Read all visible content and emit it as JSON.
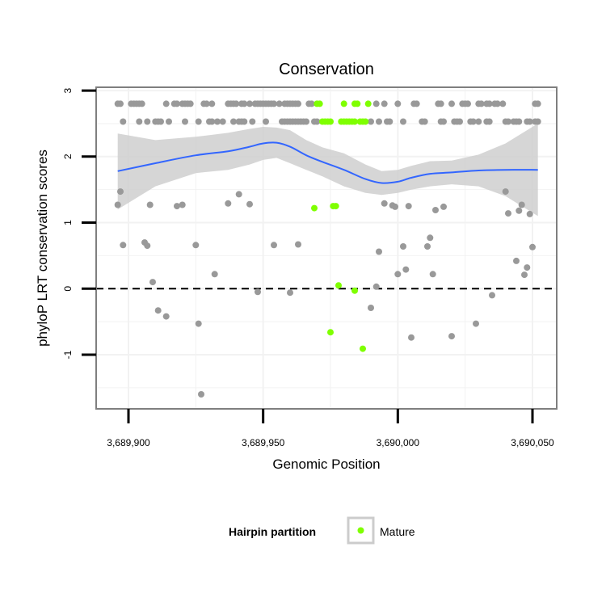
{
  "chart_data": {
    "type": "scatter",
    "title": "Conservation",
    "xlabel": "Genomic Position",
    "ylabel": "phyloP LRT conservation scores",
    "xlim": [
      3689888,
      3690059
    ],
    "ylim": [
      -1.82,
      3.05
    ],
    "x_ticks": [
      3689900,
      3689950,
      3690000,
      3690050
    ],
    "x_tick_labels": [
      "3,689,900",
      "3,689,950",
      "3,690,000",
      "3,690,050"
    ],
    "y_ticks": [
      -1,
      0,
      1,
      2,
      3
    ],
    "y_tick_labels": [
      "-1",
      "0",
      "1",
      "2",
      "3"
    ],
    "reference_line": {
      "y": 0,
      "style": "dashed"
    },
    "colors": {
      "other": "#999999",
      "mature": "#7FFF00",
      "smooth": "#3366FF",
      "ribbon": "#cccccc",
      "panel_border": "#7f7f7f",
      "grid": "#f2f2f2"
    },
    "legend": {
      "title": "Hairpin partition",
      "entries": [
        {
          "label": "Mature",
          "color": "#7FFF00"
        }
      ],
      "position": "bottom"
    },
    "smooth": {
      "x": [
        3689896,
        3689910,
        3689925,
        3689937,
        3689945,
        3689950,
        3689955,
        3689960,
        3689966,
        3689972,
        3689980,
        3689988,
        3689994,
        3690000,
        3690005,
        3690012,
        3690020,
        3690030,
        3690040,
        3690052
      ],
      "y": [
        1.78,
        1.9,
        2.02,
        2.08,
        2.15,
        2.2,
        2.21,
        2.15,
        2.02,
        1.92,
        1.8,
        1.66,
        1.6,
        1.62,
        1.68,
        1.74,
        1.76,
        1.79,
        1.8,
        1.8
      ],
      "lower": [
        1.2,
        1.55,
        1.75,
        1.8,
        1.88,
        1.95,
        1.98,
        1.9,
        1.8,
        1.7,
        1.55,
        1.45,
        1.42,
        1.45,
        1.5,
        1.55,
        1.58,
        1.55,
        1.4,
        1.1
      ],
      "upper": [
        2.35,
        2.25,
        2.3,
        2.36,
        2.42,
        2.45,
        2.44,
        2.4,
        2.25,
        2.14,
        2.05,
        1.88,
        1.78,
        1.8,
        1.86,
        1.93,
        1.94,
        2.03,
        2.2,
        2.5
      ]
    },
    "series": [
      {
        "name": "Other",
        "color": "#999999",
        "points": [
          [
            3689896,
            2.8
          ],
          [
            3689897,
            2.8
          ],
          [
            3689901,
            2.8
          ],
          [
            3689902,
            2.8
          ],
          [
            3689903,
            2.8
          ],
          [
            3689904,
            2.8
          ],
          [
            3689905,
            2.8
          ],
          [
            3689914,
            2.8
          ],
          [
            3689917,
            2.8
          ],
          [
            3689918,
            2.8
          ],
          [
            3689920,
            2.8
          ],
          [
            3689921,
            2.8
          ],
          [
            3689922,
            2.8
          ],
          [
            3689923,
            2.8
          ],
          [
            3689928,
            2.8
          ],
          [
            3689929,
            2.8
          ],
          [
            3689931,
            2.8
          ],
          [
            3689937,
            2.8
          ],
          [
            3689938,
            2.8
          ],
          [
            3689939,
            2.8
          ],
          [
            3689940,
            2.8
          ],
          [
            3689942,
            2.8
          ],
          [
            3689943,
            2.8
          ],
          [
            3689945,
            2.8
          ],
          [
            3689947,
            2.8
          ],
          [
            3689948,
            2.8
          ],
          [
            3689949,
            2.8
          ],
          [
            3689950,
            2.8
          ],
          [
            3689951,
            2.8
          ],
          [
            3689952,
            2.8
          ],
          [
            3689953,
            2.8
          ],
          [
            3689954,
            2.8
          ],
          [
            3689956,
            2.8
          ],
          [
            3689958,
            2.8
          ],
          [
            3689959,
            2.8
          ],
          [
            3689960,
            2.8
          ],
          [
            3689961,
            2.8
          ],
          [
            3689962,
            2.8
          ],
          [
            3689963,
            2.8
          ],
          [
            3689967,
            2.8
          ],
          [
            3689968,
            2.8
          ],
          [
            3689992,
            2.8
          ],
          [
            3689995,
            2.8
          ],
          [
            3690000,
            2.8
          ],
          [
            3690006,
            2.8
          ],
          [
            3690007,
            2.8
          ],
          [
            3690015,
            2.8
          ],
          [
            3690016,
            2.8
          ],
          [
            3690020,
            2.8
          ],
          [
            3690024,
            2.8
          ],
          [
            3690025,
            2.8
          ],
          [
            3690026,
            2.8
          ],
          [
            3690030,
            2.8
          ],
          [
            3690031,
            2.8
          ],
          [
            3690033,
            2.8
          ],
          [
            3690034,
            2.8
          ],
          [
            3690036,
            2.8
          ],
          [
            3690037,
            2.8
          ],
          [
            3690039,
            2.8
          ],
          [
            3690051,
            2.8
          ],
          [
            3690052,
            2.8
          ],
          [
            3689898,
            2.53
          ],
          [
            3689904,
            2.53
          ],
          [
            3689907,
            2.53
          ],
          [
            3689910,
            2.53
          ],
          [
            3689911,
            2.53
          ],
          [
            3689912,
            2.53
          ],
          [
            3689915,
            2.53
          ],
          [
            3689921,
            2.53
          ],
          [
            3689926,
            2.53
          ],
          [
            3689930,
            2.53
          ],
          [
            3689931,
            2.53
          ],
          [
            3689933,
            2.53
          ],
          [
            3689935,
            2.53
          ],
          [
            3689939,
            2.53
          ],
          [
            3689941,
            2.53
          ],
          [
            3689942,
            2.53
          ],
          [
            3689943,
            2.53
          ],
          [
            3689946,
            2.53
          ],
          [
            3689951,
            2.53
          ],
          [
            3689957,
            2.53
          ],
          [
            3689958,
            2.53
          ],
          [
            3689959,
            2.53
          ],
          [
            3689960,
            2.53
          ],
          [
            3689961,
            2.53
          ],
          [
            3689962,
            2.53
          ],
          [
            3689963,
            2.53
          ],
          [
            3689964,
            2.53
          ],
          [
            3689965,
            2.53
          ],
          [
            3689966,
            2.53
          ],
          [
            3689969,
            2.53
          ],
          [
            3689970,
            2.53
          ],
          [
            3689990,
            2.53
          ],
          [
            3689993,
            2.53
          ],
          [
            3689996,
            2.53
          ],
          [
            3689997,
            2.53
          ],
          [
            3690002,
            2.53
          ],
          [
            3690009,
            2.53
          ],
          [
            3690010,
            2.53
          ],
          [
            3690016,
            2.53
          ],
          [
            3690017,
            2.53
          ],
          [
            3690021,
            2.53
          ],
          [
            3690022,
            2.53
          ],
          [
            3690023,
            2.53
          ],
          [
            3690027,
            2.53
          ],
          [
            3690028,
            2.53
          ],
          [
            3690030,
            2.53
          ],
          [
            3690033,
            2.53
          ],
          [
            3690034,
            2.53
          ],
          [
            3690040,
            2.53
          ],
          [
            3690041,
            2.53
          ],
          [
            3690043,
            2.53
          ],
          [
            3690044,
            2.53
          ],
          [
            3690045,
            2.53
          ],
          [
            3690048,
            2.53
          ],
          [
            3690049,
            2.53
          ],
          [
            3690051,
            2.53
          ],
          [
            3690052,
            2.53
          ],
          [
            3689896,
            1.27
          ],
          [
            3689897,
            1.47
          ],
          [
            3689898,
            0.66
          ],
          [
            3689906,
            0.7
          ],
          [
            3689907,
            0.65
          ],
          [
            3689908,
            1.27
          ],
          [
            3689909,
            0.1
          ],
          [
            3689911,
            -0.33
          ],
          [
            3689914,
            -0.42
          ],
          [
            3689918,
            1.25
          ],
          [
            3689920,
            1.27
          ],
          [
            3689925,
            0.66
          ],
          [
            3689926,
            -0.53
          ],
          [
            3689927,
            -1.6
          ],
          [
            3689932,
            0.22
          ],
          [
            3689937,
            1.29
          ],
          [
            3689941,
            1.43
          ],
          [
            3689945,
            1.28
          ],
          [
            3689948,
            -0.05
          ],
          [
            3689954,
            0.66
          ],
          [
            3689960,
            -0.06
          ],
          [
            3689963,
            0.67
          ],
          [
            3689990,
            -0.29
          ],
          [
            3689992,
            0.03
          ],
          [
            3689993,
            0.56
          ],
          [
            3689995,
            1.29
          ],
          [
            3689998,
            1.26
          ],
          [
            3689999,
            1.24
          ],
          [
            3690000,
            0.22
          ],
          [
            3690002,
            0.64
          ],
          [
            3690003,
            0.29
          ],
          [
            3690004,
            1.25
          ],
          [
            3690005,
            -0.74
          ],
          [
            3690011,
            0.64
          ],
          [
            3690012,
            0.77
          ],
          [
            3690013,
            0.22
          ],
          [
            3690014,
            1.19
          ],
          [
            3690017,
            1.24
          ],
          [
            3690020,
            -0.72
          ],
          [
            3690029,
            -0.53
          ],
          [
            3690035,
            -0.1
          ],
          [
            3690040,
            1.47
          ],
          [
            3690041,
            1.14
          ],
          [
            3690044,
            0.42
          ],
          [
            3690045,
            1.18
          ],
          [
            3690046,
            1.27
          ],
          [
            3690047,
            0.21
          ],
          [
            3690048,
            0.32
          ],
          [
            3690049,
            1.13
          ],
          [
            3690050,
            0.63
          ]
        ]
      },
      {
        "name": "Mature",
        "color": "#7FFF00",
        "points": [
          [
            3689970,
            2.8
          ],
          [
            3689971,
            2.8
          ],
          [
            3689980,
            2.8
          ],
          [
            3689984,
            2.8
          ],
          [
            3689985,
            2.8
          ],
          [
            3689989,
            2.8
          ],
          [
            3689972,
            2.53
          ],
          [
            3689973,
            2.53
          ],
          [
            3689974,
            2.53
          ],
          [
            3689975,
            2.53
          ],
          [
            3689979,
            2.53
          ],
          [
            3689980,
            2.53
          ],
          [
            3689981,
            2.53
          ],
          [
            3689982,
            2.53
          ],
          [
            3689983,
            2.53
          ],
          [
            3689984,
            2.53
          ],
          [
            3689986,
            2.53
          ],
          [
            3689987,
            2.53
          ],
          [
            3689988,
            2.53
          ],
          [
            3689969,
            1.22
          ],
          [
            3689976,
            1.25
          ],
          [
            3689977,
            1.25
          ],
          [
            3689978,
            0.05
          ],
          [
            3689975,
            -0.66
          ],
          [
            3689984,
            -0.03
          ],
          [
            3689987,
            -0.91
          ]
        ]
      }
    ]
  }
}
